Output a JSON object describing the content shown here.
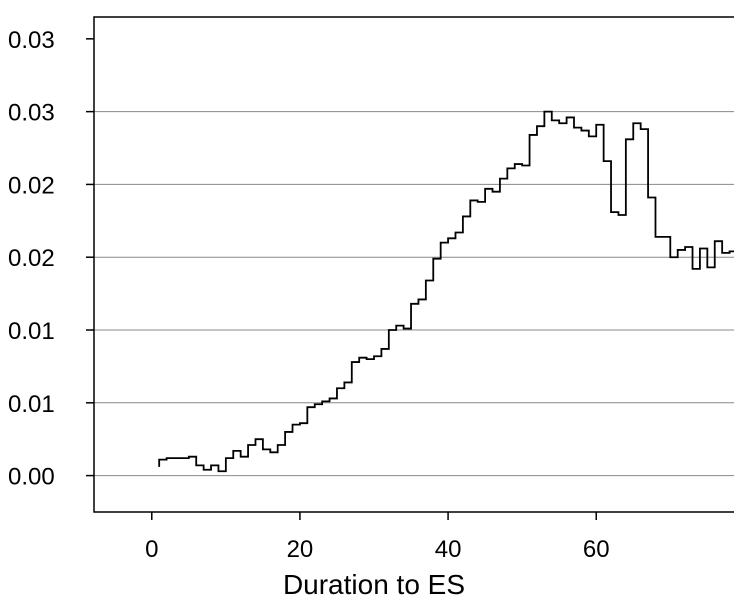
{
  "chart_data": {
    "type": "line",
    "step": true,
    "title": "",
    "xlabel": "Duration to ES",
    "ylabel": "",
    "grid": "horizontal",
    "xlim": [
      -7.8,
      78.6
    ],
    "ylim": [
      -0.0025,
      0.0315
    ],
    "x_ticks": [
      {
        "value": 0,
        "label": "0"
      },
      {
        "value": 20,
        "label": "20"
      },
      {
        "value": 40,
        "label": "40"
      },
      {
        "value": 60,
        "label": "60"
      }
    ],
    "y_ticks": [
      {
        "value": 0.0,
        "label": "0.00"
      },
      {
        "value": 0.005,
        "label": "0.01"
      },
      {
        "value": 0.01,
        "label": "0.01"
      },
      {
        "value": 0.015,
        "label": "0.02"
      },
      {
        "value": 0.02,
        "label": "0.02"
      },
      {
        "value": 0.025,
        "label": "0.03"
      },
      {
        "value": 0.03,
        "label": "0.03"
      }
    ],
    "series": [
      {
        "color": "#000000",
        "x": [
          1,
          2,
          3,
          4,
          5,
          6,
          7,
          8,
          9,
          10,
          11,
          12,
          13,
          14,
          15,
          16,
          17,
          18,
          19,
          20,
          21,
          22,
          23,
          24,
          25,
          26,
          27,
          28,
          29,
          30,
          31,
          32,
          33,
          34,
          35,
          36,
          37,
          38,
          39,
          40,
          41,
          42,
          43,
          44,
          45,
          46,
          47,
          48,
          49,
          50,
          51,
          52,
          53,
          54,
          55,
          56,
          57,
          58,
          59,
          60,
          61,
          62,
          63,
          64,
          65,
          66,
          67,
          68,
          69,
          70,
          71,
          72,
          73,
          74,
          75,
          76,
          77,
          78
        ],
        "y": [
          0.0011,
          0.0012,
          0.0012,
          0.0012,
          0.0013,
          0.0007,
          0.0004,
          0.0007,
          0.0003,
          0.0012,
          0.0017,
          0.0013,
          0.0021,
          0.0025,
          0.0018,
          0.0016,
          0.0021,
          0.003,
          0.0035,
          0.0036,
          0.0047,
          0.0049,
          0.0051,
          0.0053,
          0.006,
          0.0064,
          0.0078,
          0.0081,
          0.008,
          0.0082,
          0.0087,
          0.01,
          0.0103,
          0.0101,
          0.0118,
          0.0121,
          0.0134,
          0.0149,
          0.016,
          0.0163,
          0.0167,
          0.0178,
          0.0189,
          0.0188,
          0.0197,
          0.0195,
          0.0204,
          0.0211,
          0.0214,
          0.0213,
          0.0234,
          0.024,
          0.025,
          0.0244,
          0.0242,
          0.0246,
          0.0239,
          0.0237,
          0.0233,
          0.0241,
          0.0216,
          0.0181,
          0.0179,
          0.0231,
          0.0242,
          0.0238,
          0.0191,
          0.0164,
          0.0164,
          0.015,
          0.0155,
          0.0157,
          0.0142,
          0.0156,
          0.0143,
          0.0161,
          0.0153,
          0.0154
        ]
      }
    ]
  }
}
